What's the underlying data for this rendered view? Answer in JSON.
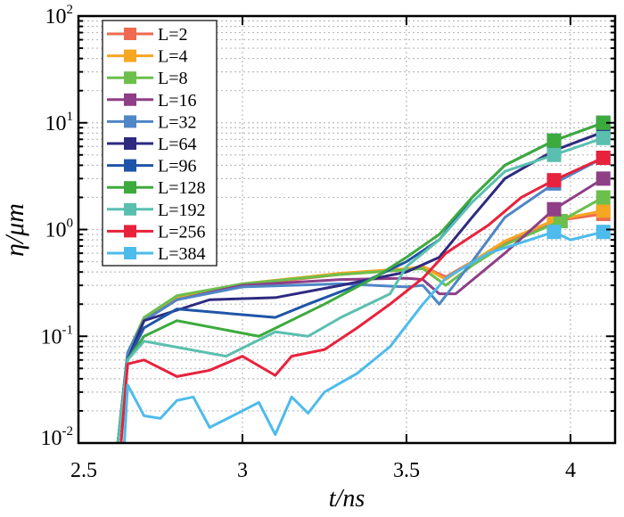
{
  "chart_data": {
    "type": "line",
    "xlabel": "t/ns",
    "ylabel": "η/μm",
    "xlim": [
      2.5,
      4.136
    ],
    "ylim": [
      0.01,
      100
    ],
    "yscale": "log",
    "xticks": [
      2.5,
      3,
      3.5,
      4
    ],
    "xtick_labels": [
      "2.5",
      "3",
      "3.5",
      "4"
    ],
    "yticks": [
      0.01,
      0.1,
      1,
      10,
      100
    ],
    "ytick_labels": [
      "10",
      "10",
      "10",
      "10",
      "10"
    ],
    "ytick_exponents": [
      "-2",
      "-1",
      "0",
      "1",
      "2"
    ],
    "grid": "dotted",
    "legend": "top-left",
    "marker_x": [
      3.95,
      4.1
    ],
    "series": [
      {
        "name": "L=2",
        "color": "#EE6A50",
        "x": [
          2.62,
          2.65,
          2.7,
          2.8,
          3.0,
          3.3,
          3.5,
          3.55,
          3.62,
          3.7,
          3.8,
          3.95,
          4.1
        ],
        "y": [
          0.01,
          0.07,
          0.14,
          0.22,
          0.3,
          0.38,
          0.42,
          0.45,
          0.36,
          0.5,
          0.75,
          1.2,
          1.4
        ]
      },
      {
        "name": "L=4",
        "color": "#F5A623",
        "x": [
          2.62,
          2.65,
          2.7,
          2.8,
          3.0,
          3.3,
          3.5,
          3.55,
          3.62,
          3.7,
          3.8,
          3.95,
          4.1
        ],
        "y": [
          0.01,
          0.07,
          0.14,
          0.23,
          0.31,
          0.39,
          0.43,
          0.45,
          0.34,
          0.5,
          0.78,
          1.22,
          1.5
        ]
      },
      {
        "name": "L=8",
        "color": "#6CBF4C",
        "x": [
          2.62,
          2.65,
          2.7,
          2.8,
          3.0,
          3.3,
          3.5,
          3.55,
          3.62,
          3.7,
          3.8,
          3.97,
          4.1
        ],
        "y": [
          0.01,
          0.07,
          0.15,
          0.24,
          0.31,
          0.38,
          0.42,
          0.43,
          0.3,
          0.46,
          0.72,
          1.2,
          2.0
        ]
      },
      {
        "name": "L=16",
        "color": "#8E3F86",
        "x": [
          2.62,
          2.65,
          2.7,
          2.8,
          3.0,
          3.3,
          3.5,
          3.55,
          3.6,
          3.65,
          3.8,
          3.95,
          4.1
        ],
        "y": [
          0.01,
          0.07,
          0.14,
          0.22,
          0.3,
          0.34,
          0.35,
          0.34,
          0.25,
          0.25,
          0.6,
          1.55,
          3.0
        ]
      },
      {
        "name": "L=32",
        "color": "#4F86C6",
        "x": [
          2.62,
          2.65,
          2.7,
          2.8,
          3.0,
          3.3,
          3.5,
          3.55,
          3.6,
          3.7,
          3.8,
          3.95,
          4.1
        ],
        "y": [
          0.01,
          0.07,
          0.14,
          0.22,
          0.29,
          0.31,
          0.29,
          0.3,
          0.2,
          0.5,
          1.3,
          2.7,
          4.7
        ]
      },
      {
        "name": "L=64",
        "color": "#2E2A80",
        "x": [
          2.62,
          2.65,
          2.7,
          2.9,
          3.1,
          3.3,
          3.5,
          3.6,
          3.7,
          3.8,
          3.95,
          4.1
        ],
        "y": [
          0.01,
          0.06,
          0.14,
          0.22,
          0.23,
          0.3,
          0.4,
          0.55,
          1.3,
          3.0,
          5.5,
          8.2
        ]
      },
      {
        "name": "L=96",
        "color": "#1F55A8",
        "x": [
          2.62,
          2.65,
          2.7,
          2.8,
          3.1,
          3.2,
          3.35,
          3.5,
          3.6,
          3.7,
          3.8,
          3.95,
          4.1
        ],
        "y": [
          0.01,
          0.06,
          0.12,
          0.18,
          0.15,
          0.2,
          0.3,
          0.5,
          0.8,
          2.0,
          4.0,
          6.8,
          10
        ]
      },
      {
        "name": "L=128",
        "color": "#3DAA3D",
        "x": [
          2.62,
          2.65,
          2.7,
          2.8,
          3.05,
          3.25,
          3.4,
          3.5,
          3.6,
          3.7,
          3.8,
          3.95,
          4.1
        ],
        "y": [
          0.01,
          0.06,
          0.1,
          0.14,
          0.1,
          0.2,
          0.35,
          0.55,
          0.9,
          2.0,
          4.0,
          6.8,
          10
        ]
      },
      {
        "name": "L=192",
        "color": "#5BBFAF",
        "x": [
          2.62,
          2.65,
          2.7,
          2.95,
          3.1,
          3.2,
          3.3,
          3.45,
          3.5,
          3.6,
          3.7,
          3.8,
          3.95,
          4.1
        ],
        "y": [
          0.01,
          0.06,
          0.09,
          0.065,
          0.11,
          0.1,
          0.15,
          0.25,
          0.45,
          0.8,
          1.8,
          3.5,
          5.0,
          7.2
        ]
      },
      {
        "name": "L=256",
        "color": "#E8223C",
        "x": [
          2.63,
          2.65,
          2.7,
          2.8,
          2.9,
          3.0,
          3.1,
          3.15,
          3.25,
          3.35,
          3.45,
          3.55,
          3.62,
          3.75,
          3.85,
          3.95,
          4.1
        ],
        "y": [
          0.01,
          0.055,
          0.06,
          0.042,
          0.048,
          0.065,
          0.043,
          0.065,
          0.075,
          0.12,
          0.2,
          0.35,
          0.6,
          1.1,
          2.0,
          2.9,
          4.7
        ]
      },
      {
        "name": "L=384",
        "color": "#4DBBEB",
        "x": [
          2.64,
          2.65,
          2.7,
          2.75,
          2.8,
          2.85,
          2.9,
          3.0,
          3.05,
          3.1,
          3.15,
          3.2,
          3.25,
          3.35,
          3.45,
          3.55,
          3.62,
          3.75,
          3.95,
          4.0,
          4.1
        ],
        "y": [
          0.01,
          0.035,
          0.018,
          0.017,
          0.025,
          0.027,
          0.014,
          0.02,
          0.024,
          0.012,
          0.027,
          0.019,
          0.03,
          0.045,
          0.08,
          0.2,
          0.35,
          0.6,
          0.95,
          0.8,
          0.95
        ]
      }
    ]
  }
}
